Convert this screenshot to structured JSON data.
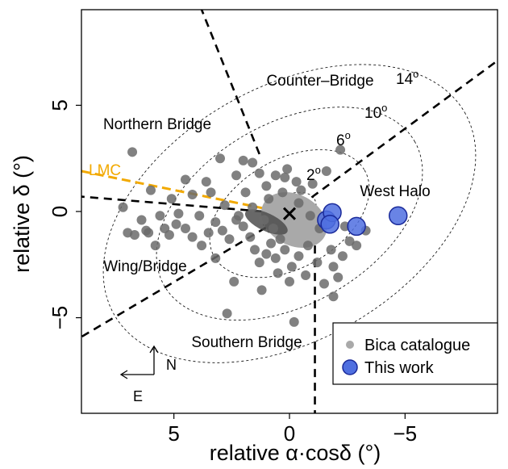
{
  "chart_data": {
    "type": "scatter",
    "xlabel": "relative α·cosδ (°)",
    "ylabel": "relative δ (°)",
    "xlim": [
      9,
      -9
    ],
    "ylim": [
      -9.5,
      9.5
    ],
    "x_inverted": true,
    "xticks": [
      5,
      0,
      -5
    ],
    "yticks": [
      -5,
      0,
      5
    ],
    "xtick_labels": [
      "5",
      "0",
      "−5"
    ],
    "ytick_labels": [
      "−5",
      "0",
      "5"
    ],
    "grid": false,
    "legend_position": "bottom-right",
    "colors": {
      "bica_light": "#a9a9a9",
      "bica_dark": "#6b6b6b",
      "bica_core": "#4d4d4d",
      "this_work_fill": "#4f6fe0",
      "this_work_edge": "#1a2a9a",
      "lmc": "#f2a900",
      "lines": "#000000"
    },
    "ellipses": [
      {
        "label": "2",
        "unit": "o",
        "rx": 1.25,
        "ry": 0.85
      },
      {
        "label": "6",
        "unit": "o",
        "rx": 3.75,
        "ry": 2.55
      },
      {
        "label": "10",
        "unit": "o",
        "rx": 6.25,
        "ry": 4.25
      },
      {
        "label": "14",
        "unit": "o",
        "rx": 8.75,
        "ry": 5.95
      }
    ],
    "ellipse_tilt_deg": -30,
    "center": [
      0,
      -0.1
    ],
    "region_labels": [
      {
        "text": "Counter–Bridge",
        "x": -0.6,
        "y": 5.5
      },
      {
        "text": "Northern Bridge",
        "x": 5.7,
        "y": 3.6
      },
      {
        "text": "West Halo",
        "x": -3.9,
        "y": 0.9
      },
      {
        "text": "Wing/Bridge",
        "x": 5.0,
        "y": -2.5
      },
      {
        "text": "Southern Bridge",
        "x": 1.5,
        "y": -6.6
      }
    ],
    "lmc_label": "LMC",
    "lmc_direction": {
      "x": [
        9,
        0
      ],
      "y": [
        1.9,
        -0.1
      ]
    },
    "sector_lines": [
      {
        "x": [
          0,
          9
        ],
        "y": [
          -0.1,
          0.7
        ]
      },
      {
        "x": [
          0,
          9
        ],
        "y": [
          -0.1,
          -5.9
        ]
      },
      {
        "x": [
          -1.1,
          -1.1
        ],
        "y": [
          -1.6,
          -9.5
        ]
      },
      {
        "x": [
          1.3,
          3.8
        ],
        "y": [
          2.7,
          9.5
        ]
      },
      {
        "x": [
          0,
          -9
        ],
        "y": [
          -0.1,
          7.1
        ]
      }
    ],
    "series": [
      {
        "name": "Bica catalogue",
        "points": [
          [
            6.8,
            2.8
          ],
          [
            7.2,
            0.2
          ],
          [
            6.4,
            -0.4
          ],
          [
            6.1,
            -1.0
          ],
          [
            5.6,
            -0.2
          ],
          [
            5.2,
            -1.1
          ],
          [
            4.9,
            -0.6
          ],
          [
            4.5,
            -0.8
          ],
          [
            4.2,
            -1.2
          ],
          [
            3.8,
            -1.6
          ],
          [
            3.5,
            -1.0
          ],
          [
            3.2,
            -0.5
          ],
          [
            2.9,
            -0.9
          ],
          [
            2.6,
            -1.3
          ],
          [
            2.3,
            -0.4
          ],
          [
            2.0,
            -0.7
          ],
          [
            1.7,
            -1.2
          ],
          [
            1.5,
            -1.8
          ],
          [
            1.3,
            -2.4
          ],
          [
            1.0,
            -2.0
          ],
          [
            0.8,
            -1.5
          ],
          [
            0.6,
            -2.2
          ],
          [
            0.4,
            -1.3
          ],
          [
            0.2,
            -1.8
          ],
          [
            -0.1,
            -2.6
          ],
          [
            -0.4,
            -2.1
          ],
          [
            -0.8,
            -1.6
          ],
          [
            -1.2,
            -2.4
          ],
          [
            -1.8,
            -1.8
          ],
          [
            -2.3,
            -2.1
          ],
          [
            -2.6,
            -1.4
          ],
          [
            -2.2,
            2.9
          ],
          [
            -1.6,
            1.9
          ],
          [
            -1.0,
            1.3
          ],
          [
            -0.5,
            1.0
          ],
          [
            0.1,
            2.0
          ],
          [
            0.6,
            1.7
          ],
          [
            1.0,
            1.2
          ],
          [
            1.6,
            2.3
          ],
          [
            2.3,
            1.7
          ],
          [
            3.0,
            2.5
          ],
          [
            3.6,
            1.4
          ],
          [
            4.2,
            0.8
          ],
          [
            4.5,
            1.5
          ],
          [
            5.1,
            0.6
          ],
          [
            6.2,
            -0.9
          ],
          [
            7.0,
            -1.0
          ],
          [
            5.8,
            -1.6
          ],
          [
            3.2,
            -2.2
          ],
          [
            2.7,
            -4.8
          ],
          [
            2.4,
            -3.3
          ],
          [
            1.2,
            -3.7
          ],
          [
            0.5,
            -2.9
          ],
          [
            -0.7,
            -3.0
          ],
          [
            -1.5,
            -3.4
          ],
          [
            -2.1,
            -3.1
          ],
          [
            -1.9,
            -4.0
          ],
          [
            -0.2,
            -5.2
          ],
          [
            0.9,
            0.6
          ],
          [
            1.6,
            0.2
          ],
          [
            2.8,
            0.3
          ],
          [
            3.4,
            0.9
          ],
          [
            0.3,
            0.9
          ],
          [
            -0.4,
            0.4
          ],
          [
            -0.9,
            -0.2
          ],
          [
            -1.3,
            -0.8
          ],
          [
            1.1,
            -0.4
          ],
          [
            0.7,
            -0.8
          ],
          [
            2.2,
            -0.2
          ],
          [
            0.2,
            1.6
          ],
          [
            -0.3,
            1.4
          ],
          [
            1.3,
            1.8
          ],
          [
            2.0,
            2.4
          ],
          [
            1.9,
            0.9
          ],
          [
            3.9,
            -0.2
          ],
          [
            4.8,
            -0.1
          ],
          [
            5.4,
            -0.8
          ],
          [
            6.7,
            -1.1
          ],
          [
            6.0,
            1.0
          ],
          [
            0.0,
            -3.3
          ],
          [
            -2.4,
            -0.7
          ],
          [
            -2.9,
            -1.6
          ],
          [
            -3.3,
            -0.9
          ],
          [
            -1.9,
            -2.6
          ]
        ]
      },
      {
        "name": "This work",
        "points": [
          [
            -1.6,
            -0.4
          ],
          [
            -1.85,
            -0.05
          ],
          [
            -1.75,
            -0.6
          ],
          [
            -2.9,
            -0.7
          ],
          [
            -4.7,
            -0.2
          ]
        ]
      }
    ],
    "legend": [
      "Bica catalogue",
      "This work"
    ],
    "compass": {
      "north": "N",
      "east": "E"
    }
  }
}
